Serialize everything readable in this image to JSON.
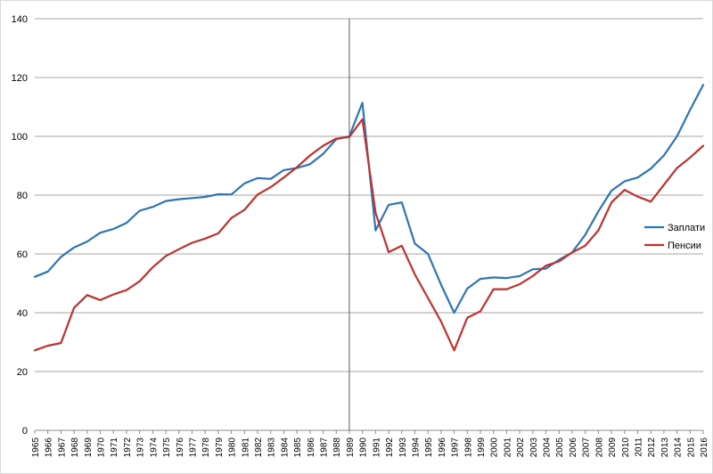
{
  "chart_data": {
    "type": "line",
    "title": "",
    "xlabel": "",
    "ylabel": "",
    "ylim": [
      0,
      140
    ],
    "yticks": [
      0,
      20,
      40,
      60,
      80,
      100,
      120,
      140
    ],
    "grid": true,
    "legend_position": "right",
    "reference_line_year": 1989,
    "categories": [
      "1965",
      "1966",
      "1967",
      "1968",
      "1969",
      "1970",
      "1971",
      "1972",
      "1973",
      "1974",
      "1975",
      "1976",
      "1977",
      "1978",
      "1979",
      "1980",
      "1981",
      "1982",
      "1983",
      "1984",
      "1985",
      "1986",
      "1987",
      "1988",
      "1989",
      "1990",
      "1991",
      "1992",
      "1993",
      "1994",
      "1995",
      "1996",
      "1997",
      "1998",
      "1999",
      "2000",
      "2001",
      "2002",
      "2003",
      "2004",
      "2005",
      "2006",
      "2007",
      "2008",
      "2009",
      "2010",
      "2011",
      "2012",
      "2013",
      "2014",
      "2015",
      "2016"
    ],
    "series": [
      {
        "name": "Заплати",
        "color": "#2e75b6",
        "values": [
          52.2,
          54.0,
          59.0,
          62.2,
          64.2,
          67.2,
          68.5,
          70.5,
          74.7,
          76.0,
          78.0,
          78.6,
          79.0,
          79.4,
          80.3,
          80.2,
          84.0,
          85.8,
          85.5,
          88.5,
          89.2,
          90.5,
          94.0,
          99.0,
          100.0,
          111.4,
          68.0,
          76.7,
          77.5,
          63.5,
          60.0,
          49.5,
          40.0,
          48.2,
          51.5,
          52.0,
          51.8,
          52.5,
          54.8,
          55.0,
          58.0,
          60.5,
          66.5,
          74.5,
          81.5,
          84.7,
          86.0,
          89.0,
          93.5,
          100.0,
          109.0,
          117.5
        ]
      },
      {
        "name": "Пенсии",
        "color": "#c0312f",
        "values": [
          27.2,
          28.8,
          29.7,
          41.7,
          46.0,
          44.3,
          46.2,
          47.7,
          50.7,
          55.5,
          59.3,
          61.6,
          63.8,
          65.2,
          67.0,
          72.2,
          75.0,
          80.2,
          82.7,
          86.0,
          89.5,
          93.5,
          96.8,
          99.2,
          99.8,
          105.8,
          74.0,
          60.6,
          62.8,
          53.0,
          45.0,
          37.0,
          27.2,
          38.3,
          40.5,
          48.0,
          48.0,
          49.7,
          52.5,
          56.0,
          57.5,
          60.5,
          62.8,
          68.0,
          77.5,
          81.8,
          79.5,
          77.8,
          83.5,
          89.2,
          92.8,
          96.8
        ]
      }
    ]
  }
}
